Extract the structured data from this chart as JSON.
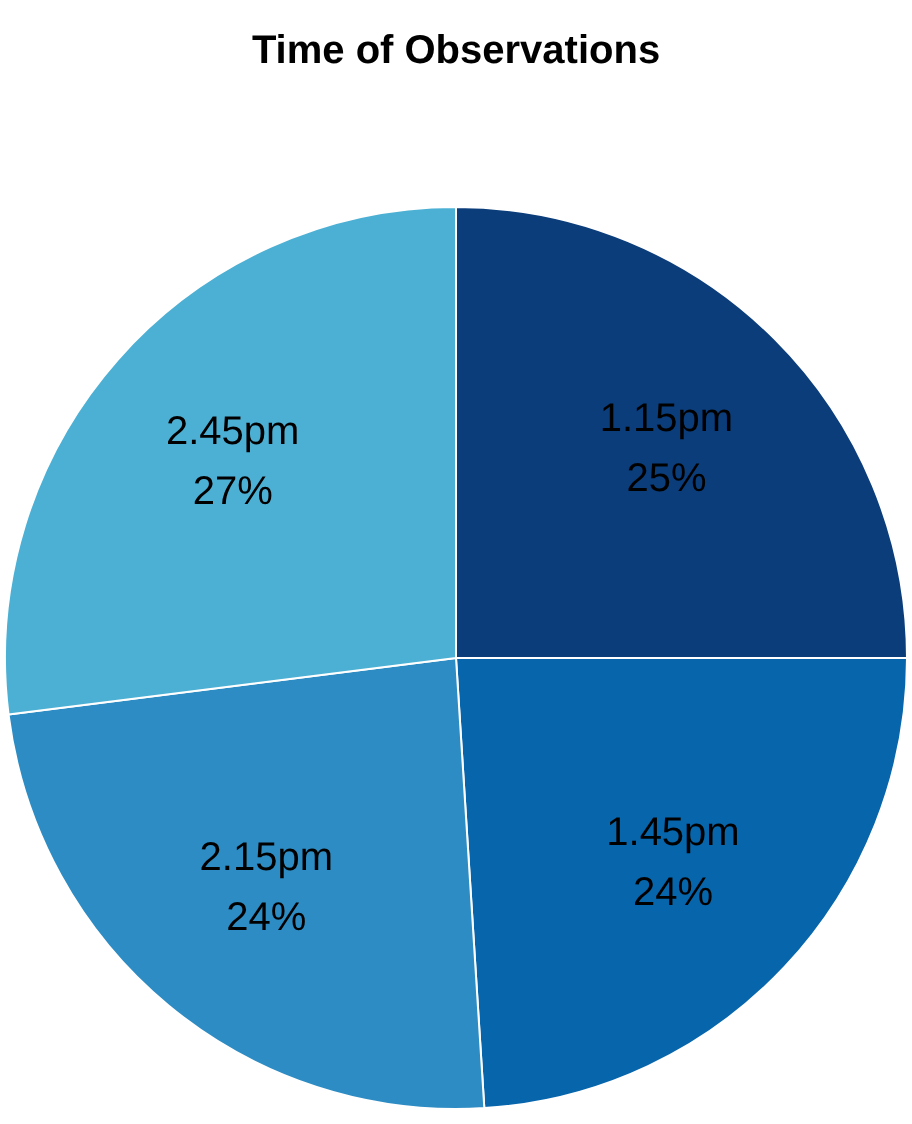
{
  "chart_data": {
    "type": "pie",
    "title": "Time of Observations",
    "categories": [
      "1.15pm",
      "1.45pm",
      "2.15pm",
      "2.45pm"
    ],
    "values": [
      25,
      24,
      24,
      27
    ],
    "colors": [
      "#0b3d7b",
      "#0765ab",
      "#2d8cc3",
      "#4cb0d4"
    ],
    "value_labels": [
      "25%",
      "24%",
      "24%",
      "27%"
    ],
    "legend": false
  }
}
